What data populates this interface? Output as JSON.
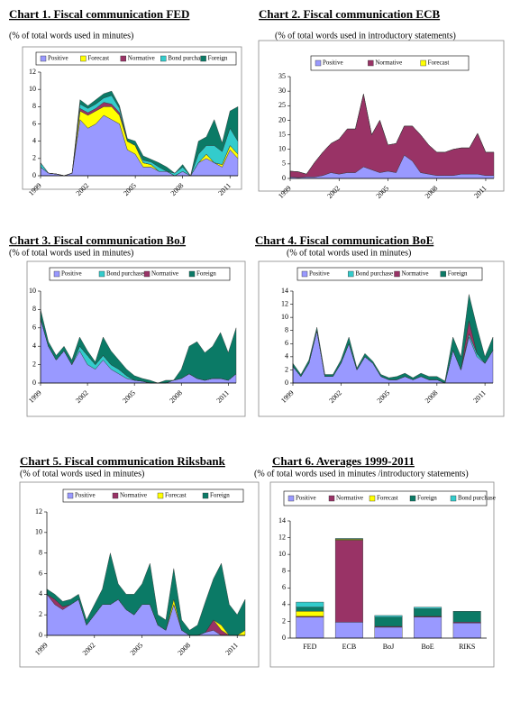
{
  "chart_data": [
    {
      "type": "area",
      "title": "Chart 1. Fiscal communication FED",
      "subtitle": "(% of total words used in minutes)",
      "x": [
        1999,
        1999.5,
        2000,
        2000.5,
        2001,
        2001.5,
        2002,
        2002.5,
        2003,
        2003.5,
        2004,
        2004.5,
        2005,
        2005.5,
        2006,
        2006.5,
        2007,
        2007.5,
        2008,
        2008.5,
        2009,
        2009.5,
        2010,
        2010.5,
        2011,
        2011.5
      ],
      "xlim": [
        1999,
        2011.5
      ],
      "xticks": [
        1999,
        2002,
        2005,
        2008,
        2011
      ],
      "ylim": [
        0,
        12
      ],
      "yticks": [
        0,
        2,
        4,
        6,
        8,
        10,
        12
      ],
      "series": [
        {
          "name": "Positive",
          "color": "#9999ff",
          "values": [
            1,
            0.3,
            0.2,
            0,
            0.3,
            6.5,
            5.5,
            6,
            7,
            6.5,
            6,
            3,
            2.5,
            1,
            1,
            0.5,
            0.5,
            0,
            0.5,
            0,
            1.5,
            2,
            1.5,
            1,
            3,
            2
          ]
        },
        {
          "name": "Forecast",
          "color": "#ffff00",
          "values": [
            0,
            0,
            0,
            0,
            0,
            1,
            1.5,
            1.5,
            1,
            1.5,
            1,
            1,
            1,
            0.5,
            0.3,
            0,
            0,
            0,
            0,
            0,
            0,
            0.5,
            0,
            0.3,
            0.5,
            0.5
          ]
        },
        {
          "name": "Normative",
          "color": "#993366",
          "values": [
            0,
            0,
            0,
            0,
            0,
            0.3,
            0.3,
            0.3,
            0.5,
            0.3,
            0.3,
            0,
            0,
            0,
            0,
            0,
            0,
            0,
            0,
            0,
            0,
            0,
            0,
            0,
            0,
            0
          ]
        },
        {
          "name": "Bond purchase",
          "color": "#33cccc",
          "values": [
            0.5,
            0,
            0,
            0,
            0,
            0.5,
            0.5,
            0.5,
            0.5,
            1,
            0.5,
            0,
            0,
            0.3,
            0.3,
            0.5,
            0,
            0.3,
            0.5,
            0,
            1,
            1,
            2,
            1.5,
            2,
            1.5
          ]
        },
        {
          "name": "Foreign",
          "color": "#0b7a66",
          "values": [
            0,
            0,
            0,
            0,
            0,
            0.5,
            0.3,
            0.5,
            0.5,
            0.5,
            0.3,
            0.3,
            0.5,
            0.5,
            0.3,
            0.5,
            0.5,
            0,
            0.3,
            0,
            1.5,
            1,
            3,
            1,
            2,
            4
          ]
        }
      ]
    },
    {
      "type": "area",
      "title": "Chart 2. Fiscal communication ECB",
      "subtitle": "(% of total words used in introductory statements)",
      "x": [
        1999,
        1999.5,
        2000,
        2000.5,
        2001,
        2001.5,
        2002,
        2002.5,
        2003,
        2003.5,
        2004,
        2004.5,
        2005,
        2005.5,
        2006,
        2006.5,
        2007,
        2007.5,
        2008,
        2008.5,
        2009,
        2009.5,
        2010,
        2010.5,
        2011,
        2011.5
      ],
      "xlim": [
        1999,
        2011.5
      ],
      "xticks": [
        1999,
        2002,
        2005,
        2008,
        2011
      ],
      "ylim": [
        0,
        35
      ],
      "yticks": [
        0,
        5,
        10,
        15,
        20,
        25,
        30,
        35
      ],
      "series": [
        {
          "name": "Positive",
          "color": "#9999ff",
          "values": [
            0.5,
            0.3,
            0.5,
            0.5,
            1,
            2,
            1.5,
            2,
            2,
            4,
            3,
            2,
            2.5,
            2,
            8,
            6,
            2,
            1.5,
            1,
            1,
            1,
            1.5,
            1.5,
            1.5,
            1,
            1
          ]
        },
        {
          "name": "Normative",
          "color": "#993366",
          "values": [
            2,
            2,
            1,
            5,
            8,
            10,
            12,
            15,
            15,
            25,
            12,
            18,
            9,
            10,
            10,
            12,
            13,
            10,
            8,
            8,
            9,
            9,
            9,
            14,
            8,
            8
          ]
        },
        {
          "name": "Forecast",
          "color": "#ffff00",
          "values": [
            0,
            0,
            0,
            0,
            0,
            0,
            0,
            0,
            0,
            0,
            0,
            0,
            0,
            0,
            0,
            0,
            0,
            0,
            0,
            0,
            0,
            0,
            0,
            0,
            0,
            0
          ]
        }
      ]
    },
    {
      "type": "area",
      "title": "Chart 3. Fiscal communication BoJ",
      "subtitle": "(% of total words used in minutes)",
      "x": [
        1999,
        1999.5,
        2000,
        2000.5,
        2001,
        2001.5,
        2002,
        2002.5,
        2003,
        2003.5,
        2004,
        2004.5,
        2005,
        2005.5,
        2006,
        2006.5,
        2007,
        2007.5,
        2008,
        2008.5,
        2009,
        2009.5,
        2010,
        2010.5,
        2011,
        2011.5
      ],
      "xlim": [
        1999,
        2011.5
      ],
      "xticks": [
        1999,
        2002,
        2005,
        2008,
        2011
      ],
      "ylim": [
        0,
        10
      ],
      "yticks": [
        0,
        2,
        4,
        6,
        8,
        10
      ],
      "series": [
        {
          "name": "Positive",
          "color": "#9999ff",
          "values": [
            7,
            4,
            2.5,
            3.5,
            2,
            3.5,
            2,
            1.5,
            2.5,
            1.5,
            1,
            0.5,
            0.3,
            0.2,
            0,
            0,
            0,
            0.3,
            0.5,
            1,
            0.5,
            0.3,
            0.5,
            0.5,
            0.3,
            1
          ]
        },
        {
          "name": "Bond purchase",
          "color": "#33cccc",
          "values": [
            0,
            0,
            0,
            0,
            0,
            0.5,
            1,
            0.5,
            0.5,
            0.5,
            0.5,
            0.3,
            0,
            0,
            0,
            0,
            0,
            0,
            0,
            0,
            0,
            0,
            0,
            0,
            0,
            0
          ]
        },
        {
          "name": "Normative",
          "color": "#993366",
          "values": [
            0,
            0,
            0,
            0,
            0,
            0,
            0,
            0,
            0,
            0,
            0,
            0,
            0,
            0,
            0,
            0,
            0,
            0,
            0,
            0,
            0,
            0,
            0,
            0,
            0,
            0
          ]
        },
        {
          "name": "Foreign",
          "color": "#0b7a66",
          "values": [
            1,
            0.5,
            0.5,
            0.5,
            0.5,
            1,
            0.5,
            0.3,
            2,
            1.5,
            1,
            0.7,
            0.5,
            0.3,
            0.3,
            0,
            0.3,
            0,
            1,
            3,
            4,
            3,
            3.5,
            5,
            3,
            5
          ]
        }
      ]
    },
    {
      "type": "area",
      "title": "Chart 4. Fiscal communication BoE",
      "subtitle": "(% of total words used in minutes)",
      "x": [
        1999,
        1999.5,
        2000,
        2000.5,
        2001,
        2001.5,
        2002,
        2002.5,
        2003,
        2003.5,
        2004,
        2004.5,
        2005,
        2005.5,
        2006,
        2006.5,
        2007,
        2007.5,
        2008,
        2008.5,
        2009,
        2009.5,
        2010,
        2010.5,
        2011,
        2011.5
      ],
      "xlim": [
        1999,
        2011.5
      ],
      "xticks": [
        1999,
        2002,
        2005,
        2008,
        2011
      ],
      "ylim": [
        0,
        14
      ],
      "yticks": [
        0,
        2,
        4,
        6,
        8,
        10,
        12,
        14
      ],
      "series": [
        {
          "name": "Positive",
          "color": "#9999ff",
          "values": [
            2.5,
            1,
            3,
            8,
            1,
            1,
            3,
            6,
            2,
            4,
            3,
            1,
            0.5,
            0.5,
            1,
            0.5,
            1,
            0.5,
            0.5,
            0,
            5,
            2,
            7,
            4,
            3,
            5
          ]
        },
        {
          "name": "Bond purchase",
          "color": "#33cccc",
          "values": [
            0,
            0,
            0,
            0,
            0,
            0,
            0,
            0,
            0,
            0,
            0,
            0,
            0,
            0,
            0,
            0,
            0,
            0,
            0,
            0,
            0,
            0,
            0.5,
            0.5,
            0,
            0
          ]
        },
        {
          "name": "Normative",
          "color": "#993366",
          "values": [
            0,
            0,
            0,
            0,
            0,
            0,
            0,
            0,
            0,
            0,
            0,
            0,
            0,
            0,
            0,
            0,
            0,
            0,
            0,
            0,
            0,
            0,
            2,
            0,
            0,
            0
          ]
        },
        {
          "name": "Foreign",
          "color": "#0b7a66",
          "values": [
            0.5,
            0.3,
            0.5,
            0.5,
            0.3,
            0.3,
            0.5,
            1,
            0.3,
            0.5,
            0.3,
            0.3,
            0.3,
            0.5,
            0.5,
            0.3,
            0.5,
            0.5,
            0.5,
            0.3,
            2,
            2,
            4,
            4,
            1,
            2
          ]
        }
      ]
    },
    {
      "type": "area",
      "title": "Chart 5. Fiscal communication Riksbank",
      "subtitle": "(% of total words used in minutes)",
      "x": [
        1999,
        1999.5,
        2000,
        2000.5,
        2001,
        2001.5,
        2002,
        2002.5,
        2003,
        2003.5,
        2004,
        2004.5,
        2005,
        2005.5,
        2006,
        2006.5,
        2007,
        2007.5,
        2008,
        2008.5,
        2009,
        2009.5,
        2010,
        2010.5,
        2011,
        2011.5
      ],
      "xlim": [
        1999,
        2011.5
      ],
      "xticks": [
        1999,
        2002,
        2005,
        2008,
        2011
      ],
      "ylim": [
        0,
        12
      ],
      "yticks": [
        0,
        2,
        4,
        6,
        8,
        10,
        12
      ],
      "series": [
        {
          "name": "Positive",
          "color": "#9999ff",
          "values": [
            4,
            3,
            2.5,
            3,
            3.5,
            1,
            2,
            3,
            3,
            3.5,
            2.5,
            2,
            3,
            3,
            1,
            0.5,
            3,
            0.5,
            0,
            0,
            0.3,
            0.5,
            0,
            0,
            0,
            0
          ]
        },
        {
          "name": "Normative",
          "color": "#993366",
          "values": [
            0,
            0.5,
            0.3,
            0,
            0,
            0,
            0,
            0,
            0,
            0,
            0,
            0,
            0,
            0,
            0,
            0,
            0,
            0,
            0,
            0,
            0,
            1,
            0.5,
            0,
            0,
            0
          ]
        },
        {
          "name": "Forecast",
          "color": "#ffff00",
          "values": [
            0,
            0,
            0,
            0,
            0,
            0,
            0,
            0,
            0,
            0,
            0,
            0,
            0,
            0,
            0,
            0,
            0.5,
            0,
            0,
            0,
            0,
            0,
            0.5,
            0,
            0,
            0.5
          ]
        },
        {
          "name": "Foreign",
          "color": "#0b7a66",
          "values": [
            0.5,
            0.5,
            0.5,
            0.5,
            0.5,
            0.5,
            1,
            1.5,
            5,
            1.5,
            1.5,
            2,
            2,
            4,
            1,
            1,
            3,
            1,
            0.5,
            1,
            3,
            4,
            6,
            3,
            2,
            3
          ]
        }
      ]
    },
    {
      "type": "bar",
      "title": "Chart 6. Averages 1999-2011",
      "subtitle": "(% of total words used in minutes /introductory statements)",
      "categories": [
        "FED",
        "ECB",
        "BoJ",
        "BoE",
        "RIKS"
      ],
      "ylim": [
        0,
        14
      ],
      "yticks": [
        0,
        2,
        4,
        6,
        8,
        10,
        12,
        14
      ],
      "series": [
        {
          "name": "Positive",
          "color": "#9999ff",
          "values": [
            2.5,
            1.9,
            1.3,
            2.5,
            1.8
          ]
        },
        {
          "name": "Normative",
          "color": "#993366",
          "values": [
            0.1,
            9.8,
            0.1,
            0.1,
            0.1
          ]
        },
        {
          "name": "Forecast",
          "color": "#ffff00",
          "values": [
            0.6,
            0.1,
            0,
            0,
            0
          ]
        },
        {
          "name": "Foreign",
          "color": "#0b7a66",
          "values": [
            0.5,
            0.1,
            1.1,
            0.9,
            1.3
          ]
        },
        {
          "name": "Bond purchase",
          "color": "#33cccc",
          "values": [
            0.6,
            0,
            0.2,
            0.2,
            0
          ]
        }
      ]
    }
  ]
}
